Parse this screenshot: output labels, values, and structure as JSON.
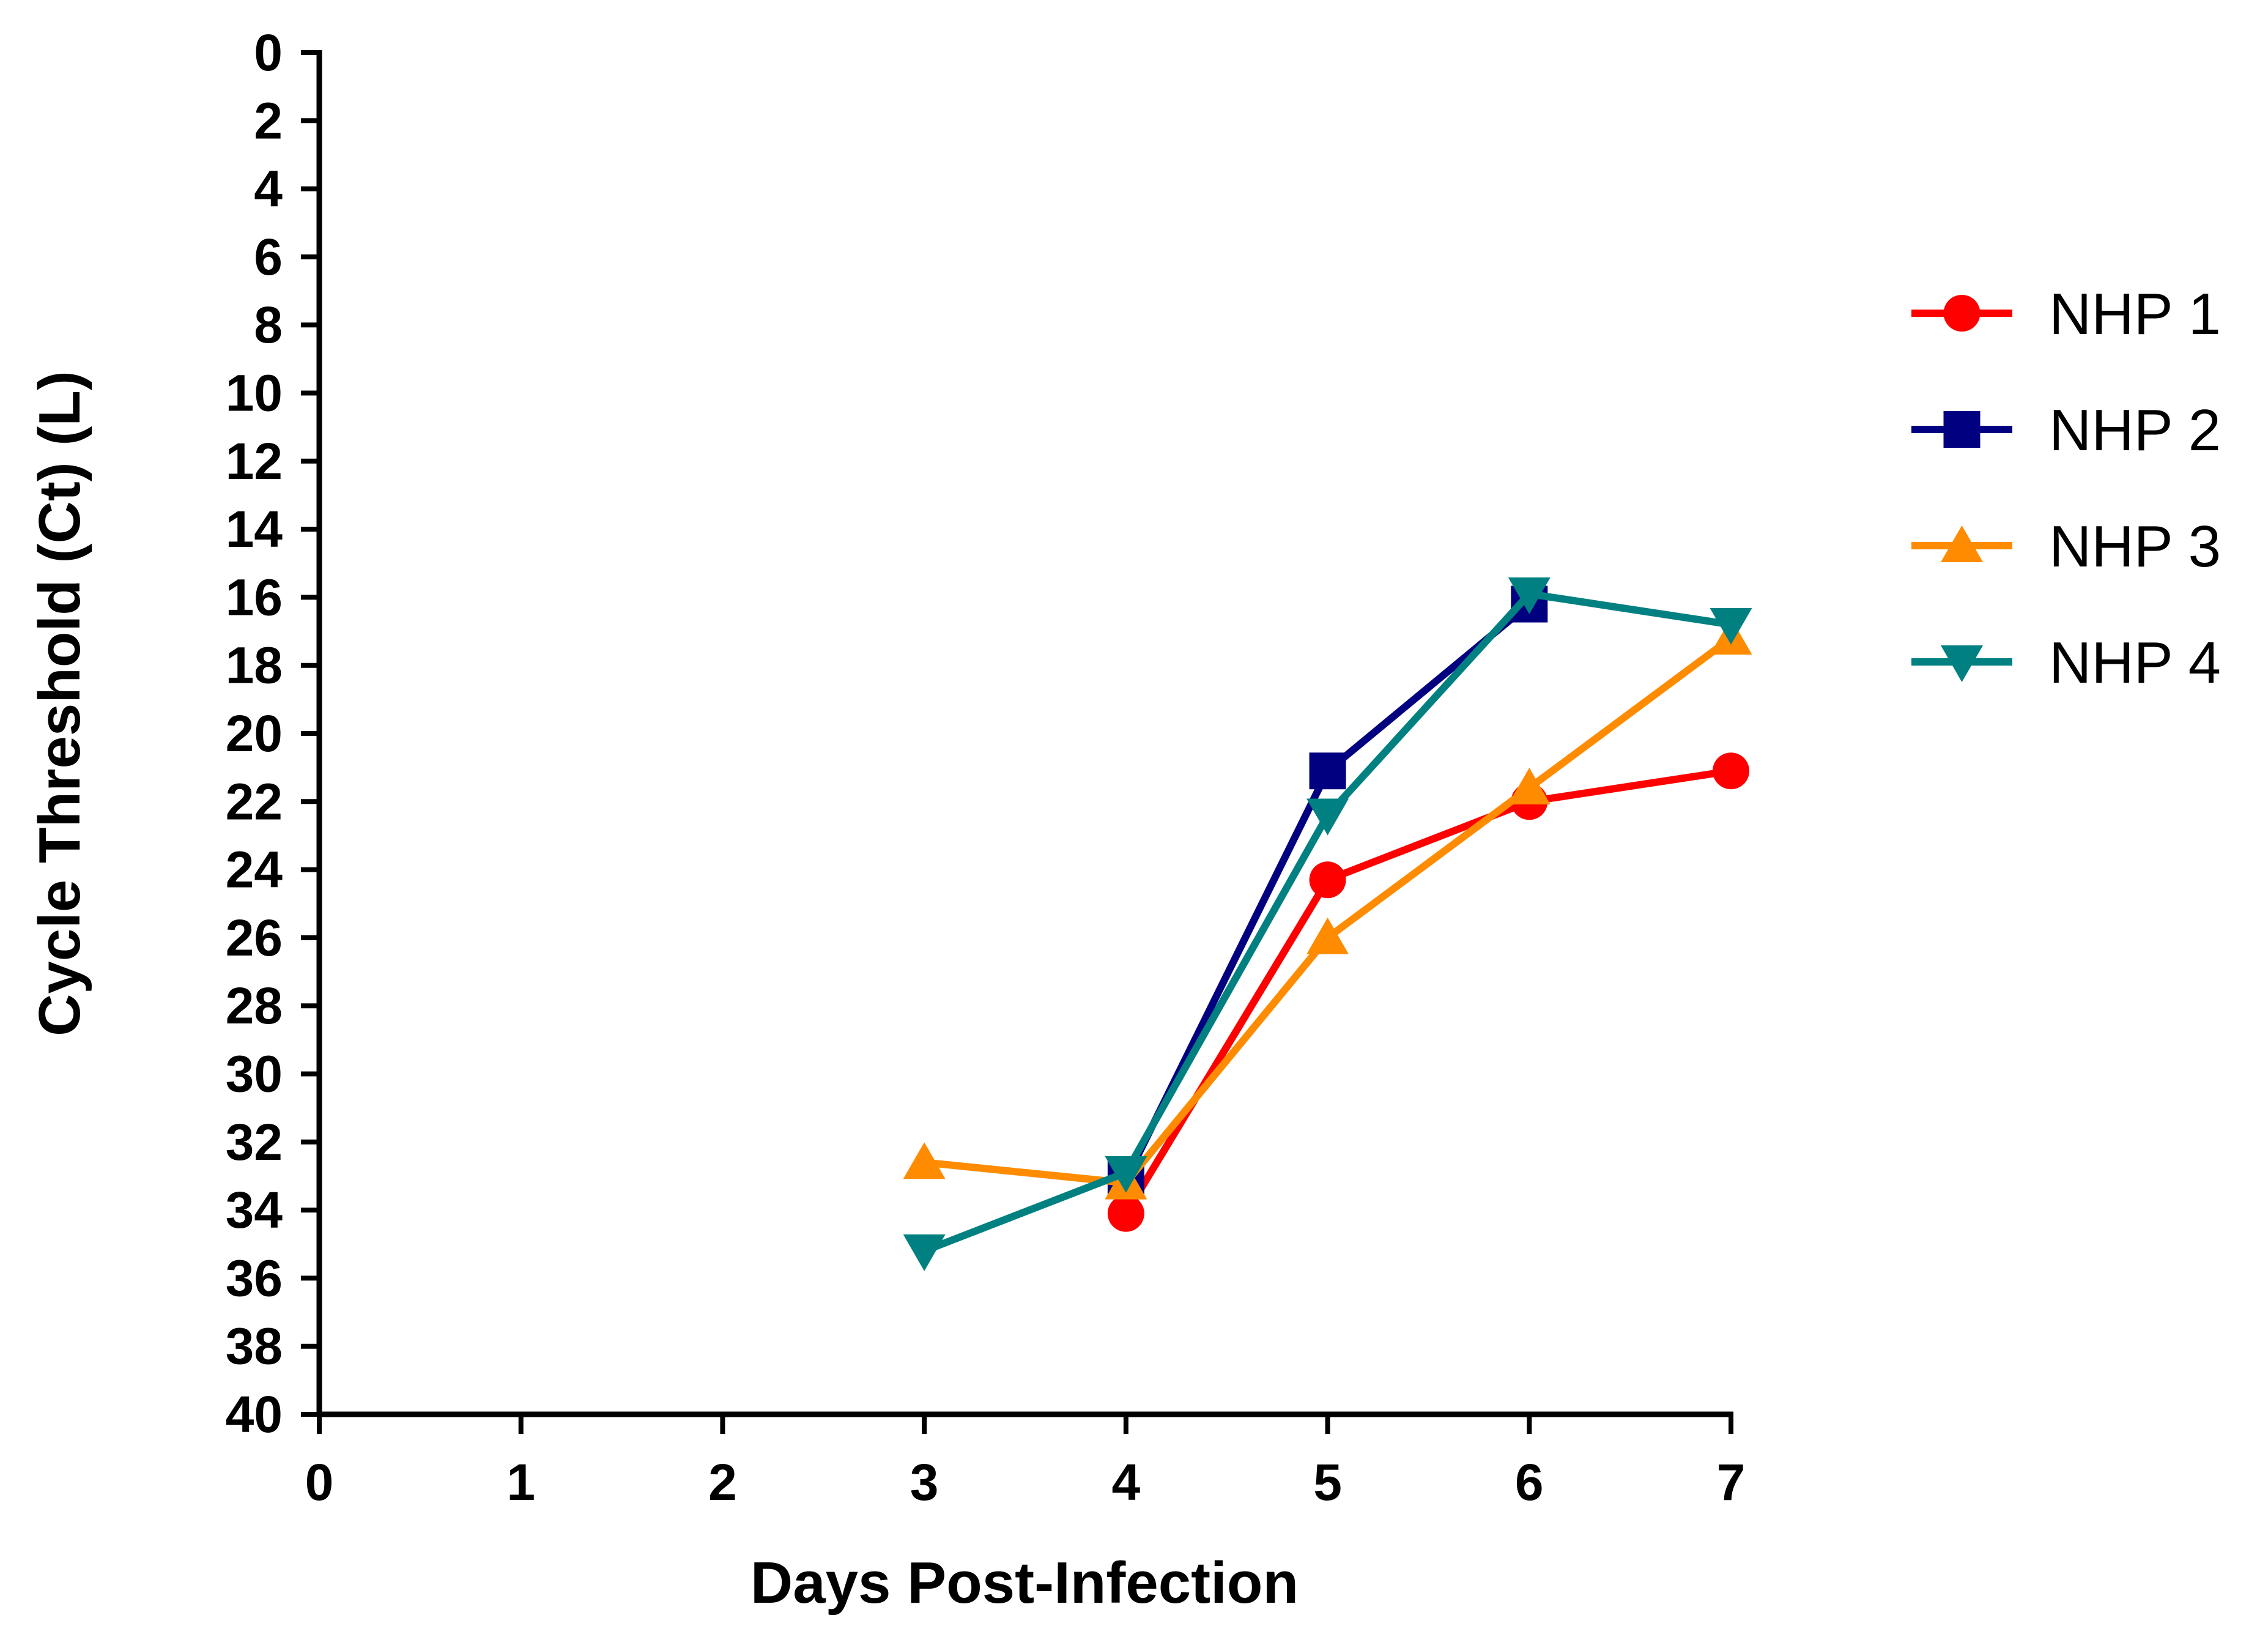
{
  "chart_data": {
    "type": "line",
    "title": "",
    "xlabel": "Days Post-Infection",
    "ylabel": "Cycle Threshold (Ct) (L)",
    "xlim": [
      0,
      7
    ],
    "ylim": [
      0,
      40
    ],
    "y_inverted": true,
    "x_ticks": [
      0,
      1,
      2,
      3,
      4,
      5,
      6,
      7
    ],
    "y_ticks": [
      0,
      2,
      4,
      6,
      8,
      10,
      12,
      14,
      16,
      18,
      20,
      22,
      24,
      26,
      28,
      30,
      32,
      34,
      36,
      38,
      40
    ],
    "grid": false,
    "legend_position": "right",
    "series": [
      {
        "name": "NHP 1",
        "color": "#ff0000",
        "marker": "circle",
        "points": [
          [
            4,
            34.1
          ],
          [
            5,
            24.3
          ],
          [
            6,
            22.0
          ],
          [
            7,
            21.1
          ]
        ]
      },
      {
        "name": "NHP 2",
        "color": "#000080",
        "marker": "square",
        "points": [
          [
            4,
            33.1
          ],
          [
            5,
            21.1
          ],
          [
            6,
            16.2
          ]
        ]
      },
      {
        "name": "NHP 3",
        "color": "#ff8c00",
        "marker": "triangle-up",
        "points": [
          [
            3,
            32.6
          ],
          [
            4,
            33.2
          ],
          [
            5,
            26.0
          ],
          [
            6,
            21.6
          ],
          [
            7,
            17.2
          ]
        ]
      },
      {
        "name": "NHP 4",
        "color": "#008080",
        "marker": "triangle-down",
        "points": [
          [
            3,
            35.2
          ],
          [
            4,
            32.9
          ],
          [
            5,
            22.4
          ],
          [
            6,
            15.9
          ],
          [
            7,
            16.8
          ]
        ]
      }
    ]
  }
}
